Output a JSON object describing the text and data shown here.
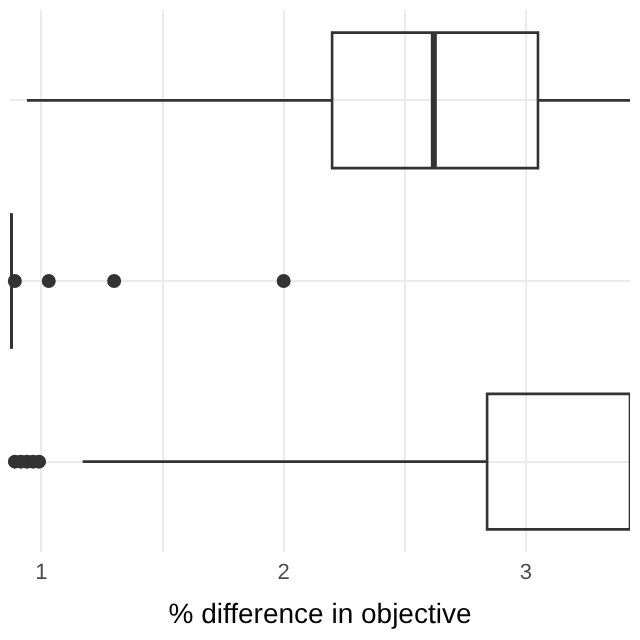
{
  "chart_data": {
    "type": "box",
    "orientation": "horizontal",
    "xlabel": "% difference in objective",
    "categories": [
      null,
      null,
      null
    ],
    "xlim": [
      0.87,
      3.43
    ],
    "xticks": [
      1,
      {
        "value": 1.5,
        "label": null
      },
      2,
      {
        "value": 2.5,
        "label": null
      },
      3
    ],
    "grid": true,
    "series": [
      {
        "color": "#333333",
        "boxes": [
          {
            "low": 0.94,
            "q1": 2.2,
            "median": 2.62,
            "q3": 3.05,
            "high": 3.43
          },
          {
            "low": 0.87,
            "q1": 0.87,
            "median": 0.87,
            "q3": 0.87,
            "high": 0.87,
            "outliers": [
              0.89,
              1.03,
              1.3,
              2.0
            ]
          },
          {
            "low": 1.17,
            "q1": 2.84,
            "median": null,
            "q3": 3.43,
            "high": 3.43,
            "outliers": [
              0.89,
              0.915,
              0.94,
              0.965,
              0.99
            ]
          }
        ]
      }
    ]
  }
}
